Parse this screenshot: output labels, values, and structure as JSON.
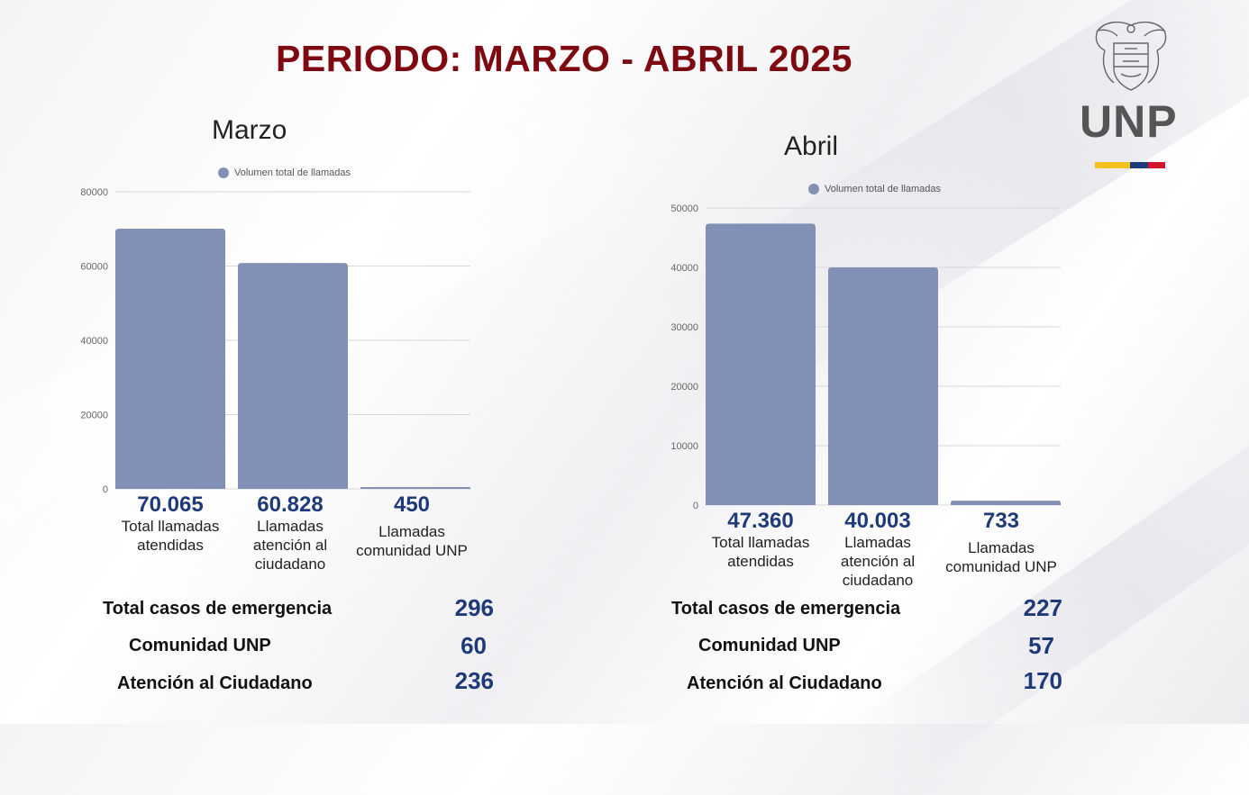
{
  "page": {
    "title": "PERIODO: MARZO - ABRIL 2025"
  },
  "logo": {
    "text": "UNP",
    "flag_colors": [
      "#f5c21b",
      "#1f3a78",
      "#d4152b"
    ]
  },
  "colors": {
    "bar": "#8290b5",
    "value": "#1f3a78",
    "title": "#7c0a10"
  },
  "chart_data": [
    {
      "type": "bar",
      "title": "Marzo",
      "legend": "Volumen total de llamadas",
      "categories": [
        "Total llamadas atendidas",
        "Llamadas atención al ciudadano",
        "Llamadas comunidad UNP"
      ],
      "values": [
        70065,
        60828,
        450
      ],
      "value_labels": [
        "70.065",
        "60.828",
        "450"
      ],
      "ylim": [
        0,
        80000
      ],
      "yticks": [
        0,
        20000,
        40000,
        60000,
        80000
      ],
      "grid": true,
      "legend_position": "top"
    },
    {
      "type": "bar",
      "title": "Abril",
      "legend": "Volumen total de llamadas",
      "categories": [
        "Total llamadas atendidas",
        "Llamadas atención al ciudadano",
        "Llamadas comunidad UNP"
      ],
      "values": [
        47360,
        40003,
        733
      ],
      "value_labels": [
        "47.360",
        "40.003",
        "733"
      ],
      "ylim": [
        0,
        50000
      ],
      "yticks": [
        0,
        10000,
        20000,
        30000,
        40000,
        50000
      ],
      "grid": true,
      "legend_position": "top"
    }
  ],
  "stats": {
    "marzo": [
      {
        "label": "Total casos de emergencia",
        "value": "296"
      },
      {
        "label": "Comunidad UNP",
        "value": "60"
      },
      {
        "label": "Atención al Ciudadano",
        "value": "236"
      }
    ],
    "abril": [
      {
        "label": "Total casos de emergencia",
        "value": "227"
      },
      {
        "label": "Comunidad UNP",
        "value": "57"
      },
      {
        "label": "Atención al Ciudadano",
        "value": "170"
      }
    ]
  }
}
